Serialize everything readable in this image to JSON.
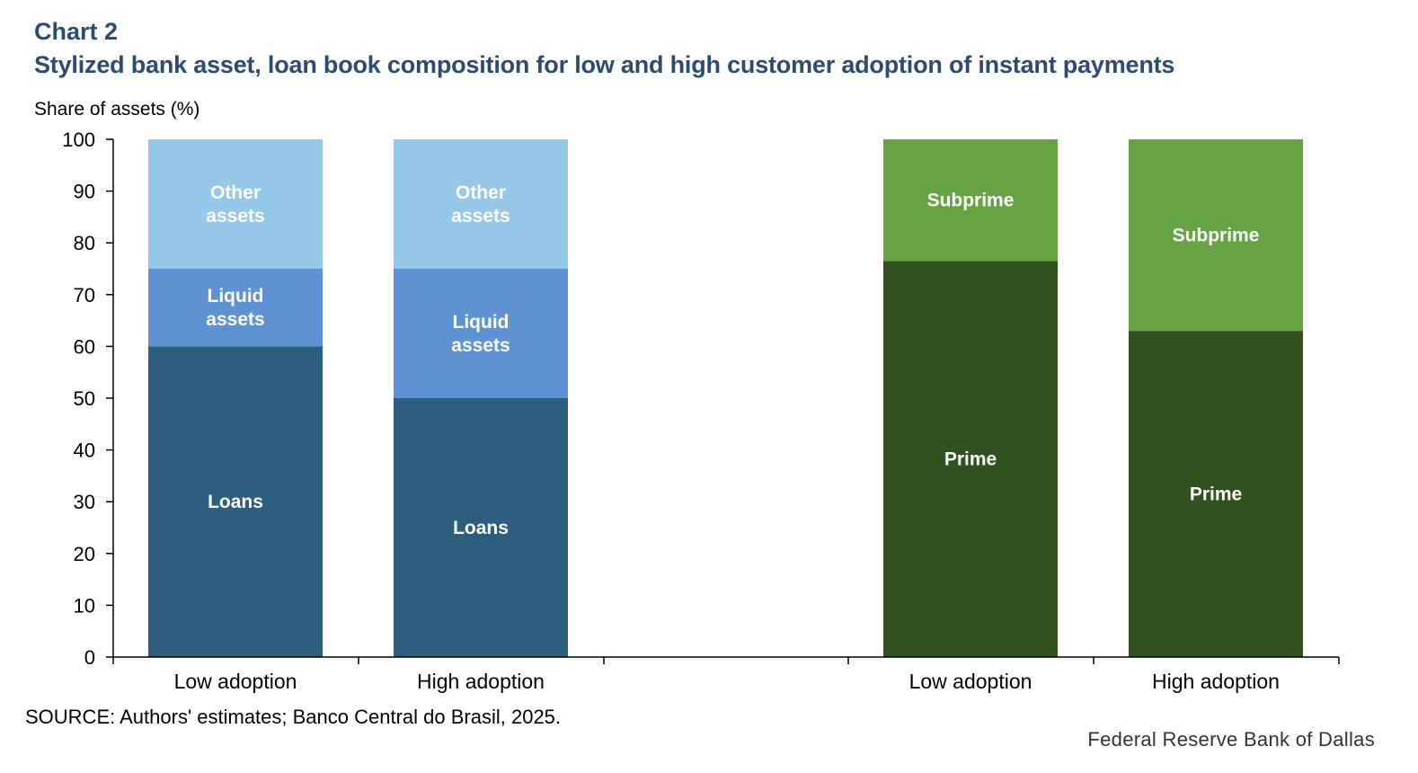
{
  "header": {
    "chart_number": "Chart 2",
    "title": "Stylized bank asset, loan book composition for low and high customer adoption of instant payments"
  },
  "footer": {
    "source": "SOURCE: Authors' estimates; Banco Central do Brasil, 2025.",
    "credit": "Federal Reserve Bank of Dallas"
  },
  "chart_data": {
    "type": "bar",
    "stacked": true,
    "title": "Stylized bank asset, loan book composition for low and high customer adoption of instant payments",
    "ylabel": "Share of assets (%)",
    "ylim": [
      0,
      100
    ],
    "yticks": [
      "0",
      "10",
      "20",
      "30",
      "40",
      "50",
      "60",
      "70",
      "80",
      "90",
      "100"
    ],
    "grid": false,
    "legend": "none",
    "groups": [
      {
        "bars": [
          {
            "category": "Low adoption",
            "segments": [
              {
                "label": "Loans",
                "value": 60,
                "color": "#2e5e7e"
              },
              {
                "label": "Liquid assets",
                "value": 15,
                "color": "#5f92d3"
              },
              {
                "label": "Other assets",
                "value": 25,
                "color": "#95c8e8"
              }
            ]
          },
          {
            "category": "High adoption",
            "segments": [
              {
                "label": "Loans",
                "value": 50,
                "color": "#2e5e7e"
              },
              {
                "label": "Liquid assets",
                "value": 25,
                "color": "#5f92d3"
              },
              {
                "label": "Other assets",
                "value": 25,
                "color": "#95c8e8"
              }
            ]
          }
        ]
      },
      {
        "bars": [
          {
            "category": "Low adoption",
            "segments": [
              {
                "label": "Prime",
                "value": 76.5,
                "color": "#315220"
              },
              {
                "label": "Subprime",
                "value": 23.5,
                "color": "#66a342"
              }
            ]
          },
          {
            "category": "High adoption",
            "segments": [
              {
                "label": "Prime",
                "value": 63,
                "color": "#315220"
              },
              {
                "label": "Subprime",
                "value": 37,
                "color": "#66a342"
              }
            ]
          }
        ]
      }
    ]
  }
}
